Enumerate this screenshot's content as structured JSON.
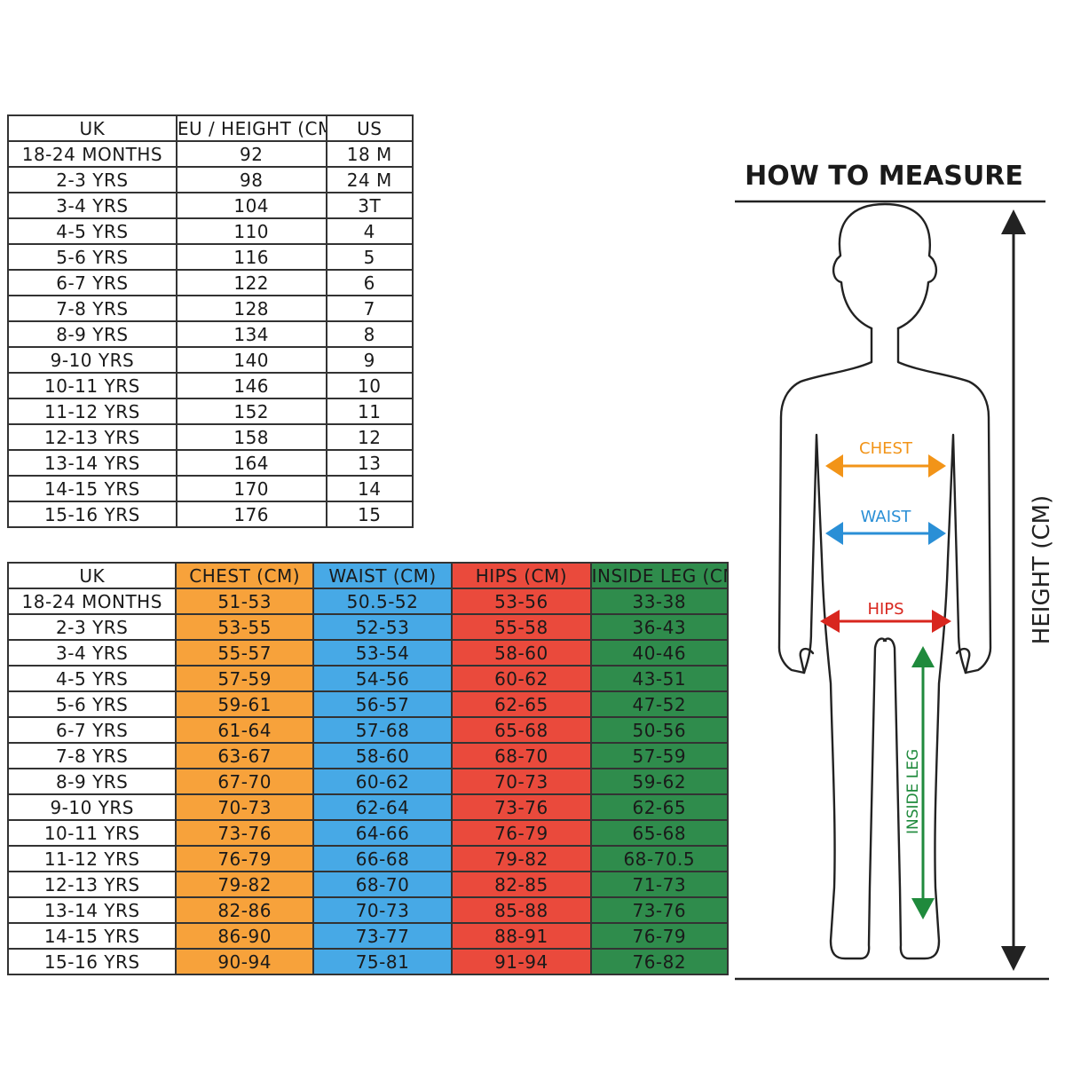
{
  "table1": {
    "headers": [
      "UK",
      "EU / HEIGHT (CM)",
      "US"
    ],
    "rows": [
      [
        "18-24 MONTHS",
        "92",
        "18 M"
      ],
      [
        "2-3 YRS",
        "98",
        "24 M"
      ],
      [
        "3-4 YRS",
        "104",
        "3T"
      ],
      [
        "4-5 YRS",
        "110",
        "4"
      ],
      [
        "5-6 YRS",
        "116",
        "5"
      ],
      [
        "6-7 YRS",
        "122",
        "6"
      ],
      [
        "7-8 YRS",
        "128",
        "7"
      ],
      [
        "8-9 YRS",
        "134",
        "8"
      ],
      [
        "9-10 YRS",
        "140",
        "9"
      ],
      [
        "10-11 YRS",
        "146",
        "10"
      ],
      [
        "11-12 YRS",
        "152",
        "11"
      ],
      [
        "12-13 YRS",
        "158",
        "12"
      ],
      [
        "13-14 YRS",
        "164",
        "13"
      ],
      [
        "14-15 YRS",
        "170",
        "14"
      ],
      [
        "15-16 YRS",
        "176",
        "15"
      ]
    ]
  },
  "table2": {
    "headers": [
      "UK",
      "CHEST (CM)",
      "WAIST (CM)",
      "HIPS (CM)",
      "INSIDE LEG (CM)"
    ],
    "rows": [
      [
        "18-24 MONTHS",
        "51-53",
        "50.5-52",
        "53-56",
        "33-38"
      ],
      [
        "2-3 YRS",
        "53-55",
        "52-53",
        "55-58",
        "36-43"
      ],
      [
        "3-4 YRS",
        "55-57",
        "53-54",
        "58-60",
        "40-46"
      ],
      [
        "4-5 YRS",
        "57-59",
        "54-56",
        "60-62",
        "43-51"
      ],
      [
        "5-6 YRS",
        "59-61",
        "56-57",
        "62-65",
        "47-52"
      ],
      [
        "6-7 YRS",
        "61-64",
        "57-68",
        "65-68",
        "50-56"
      ],
      [
        "7-8 YRS",
        "63-67",
        "58-60",
        "68-70",
        "57-59"
      ],
      [
        "8-9 YRS",
        "67-70",
        "60-62",
        "70-73",
        "59-62"
      ],
      [
        "9-10 YRS",
        "70-73",
        "62-64",
        "73-76",
        "62-65"
      ],
      [
        "10-11 YRS",
        "73-76",
        "64-66",
        "76-79",
        "65-68"
      ],
      [
        "11-12 YRS",
        "76-79",
        "66-68",
        "79-82",
        "68-70.5"
      ],
      [
        "12-13 YRS",
        "79-82",
        "68-70",
        "82-85",
        "71-73"
      ],
      [
        "13-14 YRS",
        "82-86",
        "70-73",
        "85-88",
        "73-76"
      ],
      [
        "14-15 YRS",
        "86-90",
        "73-77",
        "88-91",
        "76-79"
      ],
      [
        "15-16 YRS",
        "90-94",
        "75-81",
        "91-94",
        "76-82"
      ]
    ],
    "column_colors": [
      "#ffffff",
      "#f7a23b",
      "#47a9e6",
      "#ea4a3c",
      "#2f8c4c"
    ]
  },
  "diagram": {
    "title": "HOW TO MEASURE",
    "chest_label": "CHEST",
    "waist_label": "WAIST",
    "hips_label": "HIPS",
    "inside_leg_label": "INSIDE LEG",
    "height_label": "HEIGHT (CM)",
    "chest_color": "#f29418",
    "waist_color": "#2a8fd6",
    "hips_color": "#d8261e",
    "inside_leg_color": "#1f8a3c"
  }
}
